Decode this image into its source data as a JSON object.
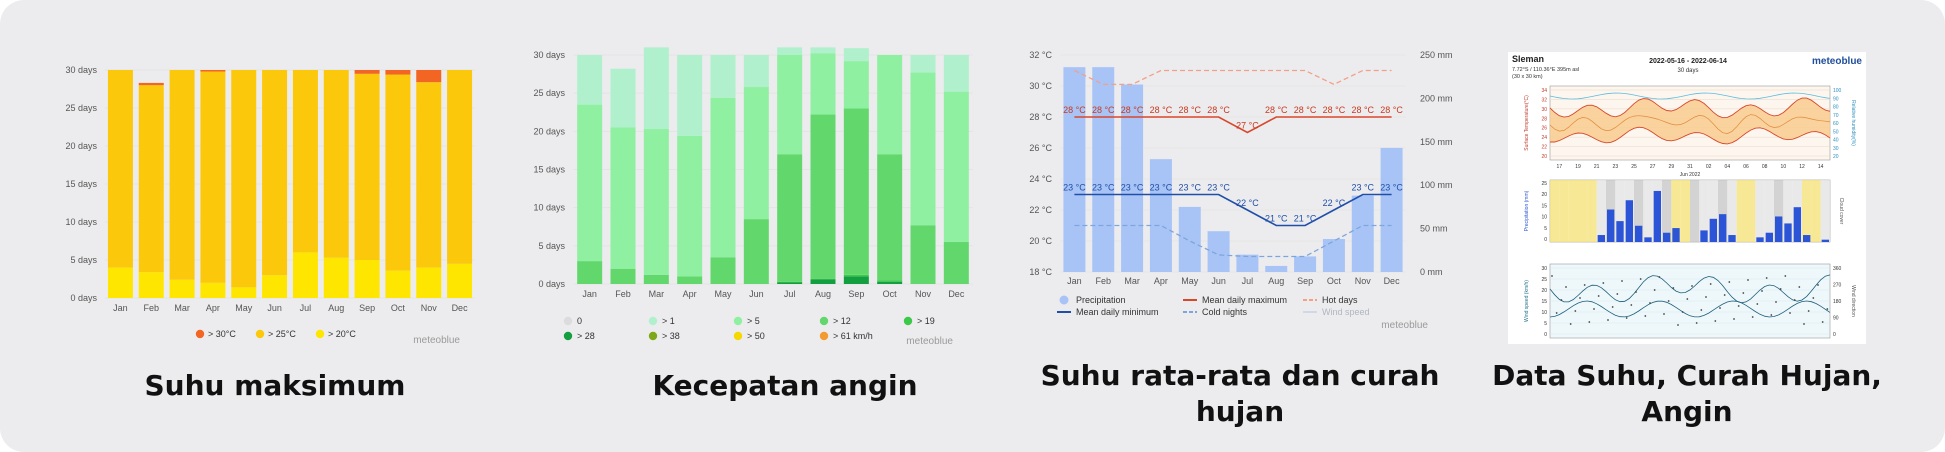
{
  "captions": [
    "Suhu maksimum",
    "Kecepatan angin",
    "Suhu rata-rata dan curah hujan",
    "Data Suhu, Curah Hujan, Angin"
  ],
  "watermark": "meteoblue",
  "months": [
    "Jan",
    "Feb",
    "Mar",
    "Apr",
    "May",
    "Jun",
    "Jul",
    "Aug",
    "Sep",
    "Oct",
    "Nov",
    "Dec"
  ],
  "charts": [
    {
      "chart_data": {
        "type": "bar",
        "stacked": true,
        "y_ticks": [
          "0 days",
          "5 days",
          "10 days",
          "15 days",
          "20 days",
          "25 days",
          "30 days"
        ],
        "ylim": [
          0,
          30
        ],
        "categories": [
          "Jan",
          "Feb",
          "Mar",
          "Apr",
          "May",
          "Jun",
          "Jul",
          "Aug",
          "Sep",
          "Oct",
          "Nov",
          "Dec"
        ],
        "series": [
          {
            "name": "> 20°C",
            "color": "#ffe600",
            "values": [
              4,
              3.4,
              2.4,
              2,
              1.4,
              3,
              6,
              5.3,
              5,
              3.6,
              4,
              4.5
            ]
          },
          {
            "name": "> 25°C",
            "color": "#fcc80c",
            "values": [
              26,
              24.6,
              27.6,
              27.8,
              28.6,
              27,
              24,
              24.7,
              24.5,
              25.8,
              24.4,
              25.5
            ]
          },
          {
            "name": "> 30°C",
            "color": "#f26522",
            "values": [
              0,
              0.3,
              0,
              0.2,
              0,
              0,
              0,
              0,
              0.5,
              0.6,
              1.6,
              0
            ]
          }
        ],
        "legend": [
          "> 30°C",
          "> 25°C",
          "> 20°C"
        ],
        "grid": true
      }
    },
    {
      "chart_data": {
        "type": "bar",
        "stacked": true,
        "y_ticks": [
          "0 days",
          "5 days",
          "10 days",
          "15 days",
          "20 days",
          "25 days",
          "30 days"
        ],
        "ylim": [
          0,
          30
        ],
        "categories": [
          "Jan",
          "Feb",
          "Mar",
          "Apr",
          "May",
          "Jun",
          "Jul",
          "Aug",
          "Sep",
          "Oct",
          "Nov",
          "Dec"
        ],
        "series": [
          {
            "name": "> 61 km/h",
            "color": "#f29b30",
            "values": [
              0,
              0,
              0,
              0,
              0,
              0,
              0,
              0,
              0,
              0,
              0,
              0
            ]
          },
          {
            "name": "> 50",
            "color": "#f5d800",
            "values": [
              0,
              0,
              0,
              0,
              0,
              0,
              0,
              0,
              0,
              0,
              0,
              0
            ]
          },
          {
            "name": "> 38",
            "color": "#7ea818",
            "values": [
              0,
              0,
              0,
              0,
              0,
              0,
              0,
              0,
              0,
              0,
              0,
              0
            ]
          },
          {
            "name": "> 28",
            "color": "#139e40",
            "values": [
              0,
              0,
              0,
              0,
              0,
              0,
              0.2,
              0.6,
              1.0,
              0.3,
              0,
              0
            ]
          },
          {
            "name": "> 19",
            "color": "#3cc94a",
            "values": [
              0,
              0,
              0,
              0,
              0,
              0,
              0.1,
              0.1,
              0.2,
              0.2,
              0,
              0
            ]
          },
          {
            "name": "> 12",
            "color": "#62d86c",
            "values": [
              3,
              2,
              1.2,
              1,
              3.5,
              8.5,
              16.7,
              21.5,
              21.8,
              16.5,
              7.7,
              5.5
            ]
          },
          {
            "name": "> 5",
            "color": "#8ef0a0",
            "values": [
              20.5,
              18.5,
              19.1,
              18.4,
              20.9,
              17.3,
              13,
              8,
              6.2,
              13,
              20,
              19.7
            ]
          },
          {
            "name": "> 1",
            "color": "#b0f0cc",
            "values": [
              6.5,
              7.7,
              10.7,
              10.6,
              5.6,
              4.2,
              1,
              0.8,
              1.7,
              0,
              2.3,
              4.8
            ]
          },
          {
            "name": "0",
            "color": "#dcdcdc",
            "values": [
              0,
              0,
              0,
              0,
              0,
              0,
              0,
              0,
              0,
              0,
              0,
              0
            ]
          }
        ],
        "legend": [
          "0",
          "> 1",
          "> 5",
          "> 12",
          "> 19",
          "> 28",
          "> 38",
          "> 50",
          "> 61 km/h"
        ],
        "grid": true
      }
    },
    {
      "chart_data": {
        "type": "bar+line",
        "y_left_ticks": [
          "18 °C",
          "20 °C",
          "22 °C",
          "24 °C",
          "26 °C",
          "28 °C",
          "30 °C",
          "32 °C"
        ],
        "y_left_range": [
          18,
          32
        ],
        "y_right_ticks": [
          "0 mm",
          "50 mm",
          "100 mm",
          "150 mm",
          "200 mm",
          "250 mm"
        ],
        "y_right_range": [
          0,
          250
        ],
        "categories": [
          "Jan",
          "Feb",
          "Mar",
          "Apr",
          "May",
          "Jun",
          "Jul",
          "Aug",
          "Sep",
          "Oct",
          "Nov",
          "Dec"
        ],
        "precipitation_mm": [
          236,
          236,
          216,
          130,
          75,
          47,
          20,
          7,
          18,
          38,
          88,
          143
        ],
        "mean_daily_maximum": [
          28,
          28,
          28,
          28,
          28,
          28,
          27,
          28,
          28,
          28,
          28,
          28
        ],
        "mean_daily_minimum": [
          23,
          23,
          23,
          23,
          23,
          23,
          22,
          21,
          21,
          22,
          23,
          23
        ],
        "hot_days": [
          31,
          30.1,
          30.1,
          31,
          31,
          31,
          31,
          31,
          31,
          30.1,
          31,
          31
        ],
        "cold_nights": [
          21,
          21,
          21,
          21,
          20,
          19.1,
          19,
          19,
          19,
          20,
          21,
          21
        ],
        "max_labels": [
          "28 °C",
          "28 °C",
          "28 °C",
          "28 °C",
          "28 °C",
          "28 °C",
          "27 °C",
          "28 °C",
          "28 °C",
          "28 °C",
          "28 °C",
          "28 °C"
        ],
        "min_labels": [
          "23 °C",
          "23 °C",
          "23 °C",
          "23 °C",
          "23 °C",
          "23 °C",
          "22 °C",
          "21 °C",
          "21 °C",
          "22 °C",
          "23 °C",
          "23 °C"
        ],
        "legend": [
          "Precipitation",
          "Mean daily maximum",
          "Hot days",
          "Mean daily minimum",
          "Cold nights",
          "Wind speed"
        ],
        "grid": true
      }
    }
  ],
  "meteogram": {
    "location": "Sleman",
    "coords": "7.72°S / 110.36°E  395m asl",
    "grid": "(30 x 30 km)",
    "dates": "2022-05-16 - 2022-06-14",
    "period": "30 days",
    "brand": "meteoblue",
    "temp_axis": "Surface Temperature(°C)",
    "humidity_axis": "Relative humidity(%)",
    "precip_axis": "Precipitation (mm)",
    "cloud_axis": "Cloud cover",
    "wind_axis": "Wind speed (km/h)",
    "wdir_axis": "Wind direction",
    "day_ticks": [
      "17",
      "19",
      "21",
      "23",
      "25",
      "27",
      "29",
      "31",
      "02",
      "04",
      "06",
      "08",
      "10",
      "12",
      "14"
    ],
    "month_label": "Jun 2022",
    "temp_ticks": [
      "34",
      "32",
      "30",
      "28",
      "26",
      "24",
      "22",
      "20"
    ],
    "humid_ticks": [
      "100",
      "90",
      "80",
      "70",
      "60",
      "50",
      "40",
      "30",
      "20"
    ],
    "precip_ticks": [
      "25",
      "20",
      "15",
      "10",
      "5",
      "0"
    ],
    "wind_ticks": [
      "30",
      "25",
      "20",
      "15",
      "10",
      "5",
      "0"
    ],
    "wdir_ticks": [
      "360",
      "270",
      "180",
      "90",
      "0"
    ]
  }
}
